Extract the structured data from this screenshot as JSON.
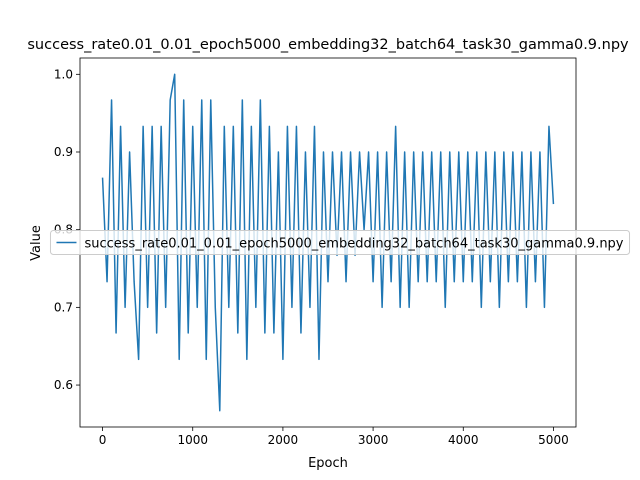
{
  "chart_data": {
    "type": "line",
    "title": "success_rate0.01_0.01_epoch5000_embedding32_batch64_task30_gamma0.9.npy",
    "x_label": "Epoch",
    "y_label": "Value",
    "xlim": [
      -250,
      5250
    ],
    "ylim": [
      0.546,
      1.021
    ],
    "xticks": [
      0,
      1000,
      2000,
      3000,
      4000,
      5000
    ],
    "yticks": [
      0.6,
      0.7,
      0.8,
      0.9,
      {
        "value": 1,
        "label": "1.0"
      }
    ],
    "legend": "center",
    "x": [
      0,
      50,
      100,
      150,
      200,
      250,
      300,
      350,
      400,
      450,
      500,
      550,
      600,
      650,
      700,
      750,
      800,
      850,
      900,
      950,
      1000,
      1050,
      1100,
      1150,
      1200,
      1250,
      1300,
      1350,
      1400,
      1450,
      1500,
      1550,
      1600,
      1650,
      1700,
      1750,
      1800,
      1850,
      1900,
      1950,
      2000,
      2050,
      2100,
      2150,
      2200,
      2250,
      2300,
      2350,
      2400,
      2450,
      2500,
      2550,
      2600,
      2650,
      2700,
      2750,
      2800,
      2850,
      2900,
      2950,
      3000,
      3050,
      3100,
      3150,
      3200,
      3250,
      3300,
      3350,
      3400,
      3450,
      3500,
      3550,
      3600,
      3650,
      3700,
      3750,
      3800,
      3850,
      3900,
      3950,
      4000,
      4050,
      4100,
      4150,
      4200,
      4250,
      4300,
      4350,
      4400,
      4450,
      4500,
      4550,
      4600,
      4650,
      4700,
      4750,
      4800,
      4850,
      4900,
      4950,
      5000
    ],
    "series": [
      {
        "name": "success_rate0.01_0.01_epoch5000_embedding32_batch64_task30_gamma0.9.npy",
        "color": "#1f77b4",
        "values": [
          0.867,
          0.733,
          0.967,
          0.667,
          0.933,
          0.7,
          0.9,
          0.733,
          0.633,
          0.933,
          0.7,
          0.933,
          0.667,
          0.933,
          0.7,
          0.967,
          1.0,
          0.633,
          0.967,
          0.667,
          0.933,
          0.7,
          0.967,
          0.633,
          0.967,
          0.7,
          0.567,
          0.933,
          0.7,
          0.933,
          0.667,
          0.967,
          0.633,
          0.933,
          0.7,
          0.967,
          0.667,
          0.933,
          0.667,
          0.9,
          0.633,
          0.933,
          0.7,
          0.933,
          0.667,
          0.9,
          0.7,
          0.933,
          0.633,
          0.9,
          0.733,
          0.9,
          0.767,
          0.9,
          0.733,
          0.9,
          0.767,
          0.9,
          0.8,
          0.9,
          0.733,
          0.9,
          0.7,
          0.9,
          0.733,
          0.933,
          0.7,
          0.9,
          0.7,
          0.9,
          0.733,
          0.9,
          0.733,
          0.9,
          0.733,
          0.9,
          0.7,
          0.9,
          0.733,
          0.9,
          0.733,
          0.9,
          0.733,
          0.9,
          0.7,
          0.9,
          0.733,
          0.9,
          0.7,
          0.9,
          0.733,
          0.9,
          0.733,
          0.9,
          0.7,
          0.9,
          0.733,
          0.9,
          0.7,
          0.933,
          0.833
        ]
      }
    ]
  }
}
